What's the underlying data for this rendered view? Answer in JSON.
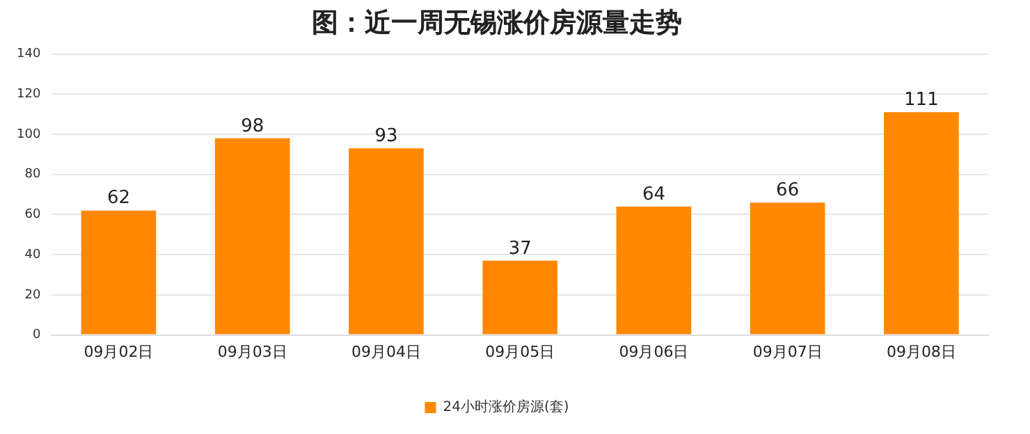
{
  "chart_data": {
    "type": "bar",
    "title": "图：近一周无锡涨价房源量走势",
    "categories": [
      "09月02日",
      "09月03日",
      "09月04日",
      "09月05日",
      "09月06日",
      "09月07日",
      "09月08日"
    ],
    "series": [
      {
        "name": "24小时涨价房源(套)",
        "color": "#ff8800",
        "values": [
          62,
          98,
          93,
          37,
          64,
          66,
          111
        ]
      }
    ],
    "ylim": [
      0,
      140
    ],
    "yticks": [
      0,
      20,
      40,
      60,
      80,
      100,
      120,
      140
    ],
    "grid": "y",
    "legend": "bottom",
    "data_labels": true
  }
}
